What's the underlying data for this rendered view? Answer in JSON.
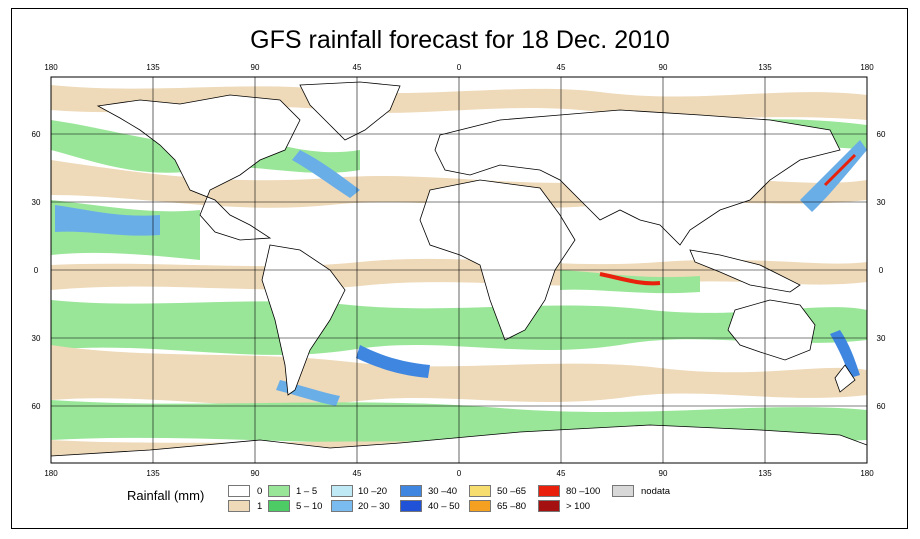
{
  "title": "GFS rainfall forecast for 18 Dec. 2010",
  "map": {
    "projection": "equirectangular",
    "lon_ticks_top": [
      "180",
      "135",
      "90",
      "45",
      "0",
      "45",
      "90",
      "135",
      "180"
    ],
    "lon_ticks_bottom": [
      "180",
      "135",
      "90",
      "45",
      "0",
      "45",
      "90",
      "135",
      "180"
    ],
    "lat_ticks_left": [
      "60",
      "30",
      "0",
      "30",
      "60"
    ],
    "lat_ticks_right": [
      "60",
      "30",
      "0",
      "30",
      "60"
    ],
    "colors": {
      "dry": "#ffffff",
      "r1": "#eed9b8",
      "r1_5": "#99e699",
      "r5_10": "#4dcc66",
      "r10_20": "#a6dcf0",
      "r20_30": "#6aaee8",
      "r30_40": "#3b7fd9",
      "r40_50": "#1f4fd6",
      "r80_100": "#e02010",
      "r100": "#a01010",
      "land_outline": "#000000"
    }
  },
  "legend": {
    "title": "Rainfall (mm)",
    "items": [
      {
        "label": "0",
        "color": "#ffffff"
      },
      {
        "label": "1",
        "color": "#eed9b8"
      },
      {
        "label": "1 – 5",
        "color": "#99e699"
      },
      {
        "label": "5 – 10",
        "color": "#4dcc66"
      },
      {
        "label": "10 –20",
        "color": "#bfe9f5"
      },
      {
        "label": "20 – 30",
        "color": "#7bbcf0"
      },
      {
        "label": "30 –40",
        "color": "#3f86e0"
      },
      {
        "label": "40 – 50",
        "color": "#1f52d6"
      },
      {
        "label": "50 –65",
        "color": "#f7dc6f"
      },
      {
        "label": "65 –80",
        "color": "#f5a020"
      },
      {
        "label": "80 –100",
        "color": "#e8200c"
      },
      {
        "label": "> 100",
        "color": "#a51010"
      },
      {
        "label": "nodata",
        "color": "#d8d8d8"
      }
    ]
  }
}
